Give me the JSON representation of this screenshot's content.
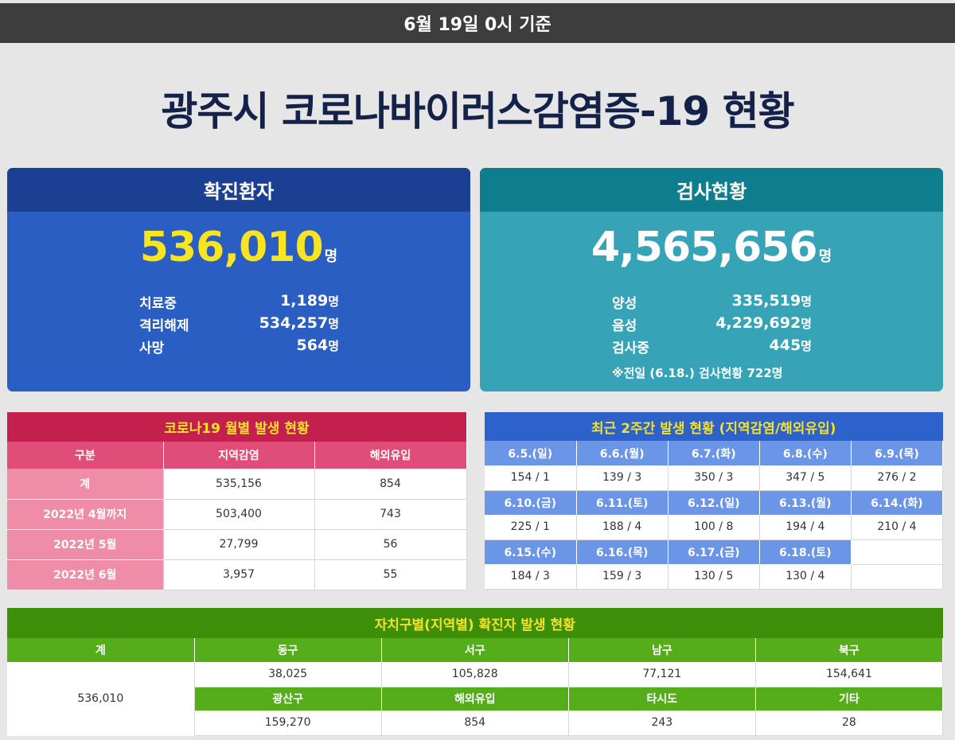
{
  "header": {
    "basis": "6월 19일 0시 기준"
  },
  "title": "광주시 코로나바이러스감염증-19 현황",
  "confirmed": {
    "heading": "확진환자",
    "total": "536,010",
    "unit": "명",
    "stats": [
      {
        "label": "치료중",
        "value": "1,189",
        "unit": "명"
      },
      {
        "label": "격리해제",
        "value": "534,257",
        "unit": "명"
      },
      {
        "label": "사망",
        "value": "564",
        "unit": "명"
      }
    ]
  },
  "tests": {
    "heading": "검사현황",
    "total": "4,565,656",
    "unit": "명",
    "stats": [
      {
        "label": "양성",
        "value": "335,519",
        "unit": "명"
      },
      {
        "label": "음성",
        "value": "4,229,692",
        "unit": "명"
      },
      {
        "label": "검사중",
        "value": "445",
        "unit": "명"
      }
    ],
    "note": "※전일 (6.18.) 검사현황 722명"
  },
  "monthly": {
    "title": "코로나19 월별 발생 현황",
    "headers": [
      "구분",
      "지역감염",
      "해외유입"
    ],
    "rows": [
      [
        "계",
        "535,156",
        "854"
      ],
      [
        "2022년 4월까지",
        "503,400",
        "743"
      ],
      [
        "2022년 5월",
        "27,799",
        "56"
      ],
      [
        "2022년 6월",
        "3,957",
        "55"
      ]
    ]
  },
  "twoweek": {
    "title": "최근 2주간 발생 현황 (지역감염/해외유입)",
    "blocks": [
      {
        "dates": [
          "6.5.(일)",
          "6.6.(월)",
          "6.7.(화)",
          "6.8.(수)",
          "6.9.(목)"
        ],
        "values": [
          "154 / 1",
          "139 / 3",
          "350 / 3",
          "347 / 5",
          "276 / 2"
        ]
      },
      {
        "dates": [
          "6.10.(금)",
          "6.11.(토)",
          "6.12.(일)",
          "6.13.(월)",
          "6.14.(화)"
        ],
        "values": [
          "225 / 1",
          "188 / 4",
          "100 / 8",
          "194 / 4",
          "210 / 4"
        ]
      },
      {
        "dates": [
          "6.15.(수)",
          "6.16.(목)",
          "6.17.(금)",
          "6.18.(토)",
          ""
        ],
        "values": [
          "184 / 3",
          "159 / 3",
          "130 / 5",
          "130 / 4",
          ""
        ]
      }
    ]
  },
  "district": {
    "title": "자치구별(지역별) 확진자 발생 현황",
    "total_label": "계",
    "total_value": "536,010",
    "row1_heads": [
      "동구",
      "서구",
      "남구",
      "북구"
    ],
    "row1_values": [
      "38,025",
      "105,828",
      "77,121",
      "154,641"
    ],
    "row2_heads": [
      "광산구",
      "해외유입",
      "타시도",
      "기타"
    ],
    "row2_values": [
      "159,270",
      "854",
      "243",
      "28"
    ]
  }
}
